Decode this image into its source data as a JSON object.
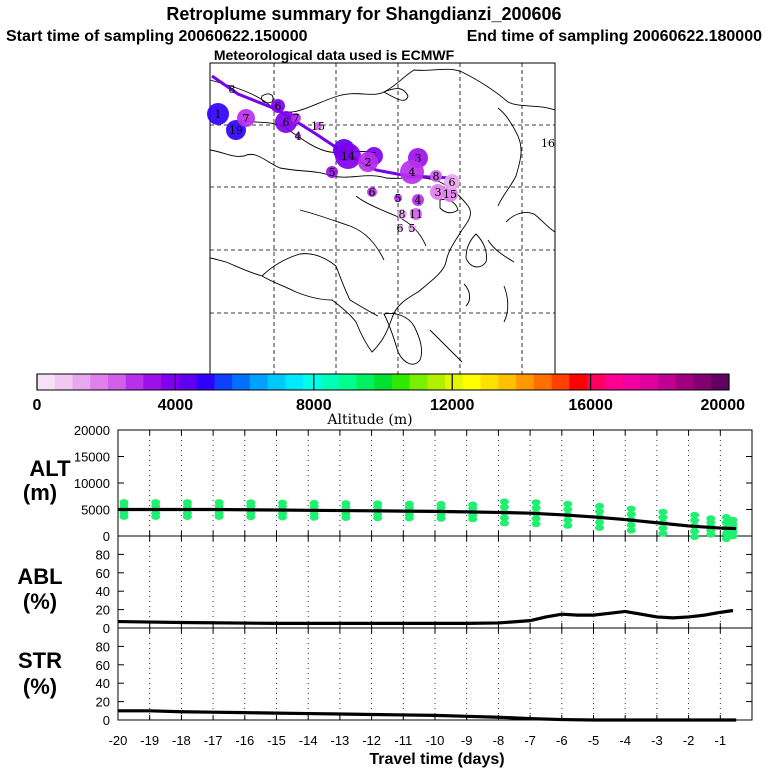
{
  "header": {
    "title": "Retroplume summary for Shangdianzi_200606",
    "start_time": "Start time of sampling 20060622.150000",
    "end_time": "End time of sampling 20060622.180000",
    "met_data": "Meteorological data used is ECMWF"
  },
  "colorbar": {
    "label": "Altitude (m)",
    "range": [
      0,
      20000
    ],
    "ticks": [
      "0",
      "4000",
      "8000",
      "12000",
      "16000",
      "20000"
    ],
    "colors": [
      "#f8e0f8",
      "#f0c8f0",
      "#e8a8ee",
      "#e080ec",
      "#d060ea",
      "#b830ea",
      "#9c10ea",
      "#8000ee",
      "#6000ee",
      "#3000ff",
      "#1040ff",
      "#0070ff",
      "#00a0ff",
      "#00c8ff",
      "#00e8ff",
      "#00ffe8",
      "#00ffb8",
      "#00ff90",
      "#00f060",
      "#00e030",
      "#30e800",
      "#78f000",
      "#b0f000",
      "#e0f800",
      "#ffff00",
      "#ffe000",
      "#ffc000",
      "#ff9800",
      "#ff7000",
      "#ff4000",
      "#ff0000",
      "#ff0060",
      "#ff0090",
      "#f000a0",
      "#e000a0",
      "#c00090",
      "#a00080",
      "#800070",
      "#600060"
    ]
  },
  "map": {
    "trajectory": [
      [
        -20,
        38,
        -8
      ],
      [
        -18,
        34,
        -3
      ],
      [
        -15,
        21,
        -6
      ],
      [
        -12,
        12,
        -3
      ],
      [
        -9,
        7,
        2
      ],
      [
        -6,
        -3,
        2
      ],
      [
        -3,
        -8,
        1
      ],
      [
        -1,
        -12,
        1
      ]
    ],
    "clusters": [
      {
        "label": "1",
        "day": -20,
        "lon": -1,
        "lat": -3,
        "alt": 5000,
        "r": 11
      },
      {
        "label": "19",
        "day": -19,
        "lon": -13,
        "lat": -3,
        "alt": 4800,
        "r": 10
      },
      {
        "label": "7",
        "day": -18,
        "lon": -8,
        "lat": 7,
        "alt": 3000,
        "r": 9
      },
      {
        "label": "6",
        "day": -16,
        "lon": 7,
        "lat": 17,
        "alt": 3800,
        "r": 7
      },
      {
        "label": "6",
        "day": -15,
        "lon": -2,
        "lat": 13,
        "alt": 3600,
        "r": 11
      },
      {
        "label": "7",
        "day": -14,
        "lon": 0,
        "lat": 7,
        "alt": 3000,
        "r": 5
      },
      {
        "label": "4",
        "day": -14,
        "lon": 10,
        "lat": 8,
        "alt": 3000,
        "r": 3
      },
      {
        "label": "15",
        "day": -13,
        "lon": 16,
        "lat": 7,
        "alt": 2500,
        "r": 4
      },
      {
        "label": "8",
        "day": -12,
        "lon": 0,
        "lat": 0,
        "alt": 4200,
        "r": 11
      },
      {
        "label": "14",
        "day": -11,
        "lon": -6,
        "lat": 2,
        "alt": 4000,
        "r": 13
      },
      {
        "label": "5",
        "day": -10,
        "lon": 3,
        "lat": 0,
        "alt": 3600,
        "r": 9
      },
      {
        "label": "2",
        "day": -9,
        "lon": 2,
        "lat": -3,
        "alt": 3000,
        "r": 10
      },
      {
        "label": "5",
        "day": -9,
        "lon": -7,
        "lat": -6,
        "alt": 3200,
        "r": 6
      },
      {
        "label": "3",
        "day": -8,
        "lon": -4,
        "lat": -2,
        "alt": 3400,
        "r": 10
      },
      {
        "label": "4",
        "day": -7,
        "lon": 0,
        "lat": -7,
        "alt": 3000,
        "r": 12
      },
      {
        "label": "6",
        "day": -7,
        "lon": -6,
        "lat": 7,
        "alt": 3000,
        "r": 5
      },
      {
        "label": "5",
        "day": -6,
        "lon": -3,
        "lat": 6,
        "alt": 3000,
        "r": 4
      },
      {
        "label": "8",
        "day": -5,
        "lon": 3,
        "lat": 5,
        "alt": 2500,
        "r": 6
      },
      {
        "label": "3",
        "day": -4,
        "lon": -9,
        "lat": -8,
        "alt": 2000,
        "r": 8
      },
      {
        "label": "15",
        "day": -4,
        "lon": -5,
        "lat": -3,
        "alt": 1800,
        "r": 8
      },
      {
        "label": "4",
        "day": -3,
        "lon": -6,
        "lat": 11,
        "alt": 3000,
        "r": 6
      },
      {
        "label": "11",
        "day": -3,
        "lon": 3,
        "lat": -4,
        "alt": 2500,
        "r": 6
      },
      {
        "label": "8",
        "day": -2,
        "lon": -2,
        "lat": -2,
        "alt": 1500,
        "r": 5
      },
      {
        "label": "5",
        "day": -2,
        "lon": -7,
        "lat": 6,
        "alt": 1500,
        "r": 4
      },
      {
        "label": "6",
        "day": -2,
        "lon": -4,
        "lat": 6,
        "alt": 1200,
        "r": 3
      },
      {
        "label": "6",
        "day": -1,
        "lon": 0,
        "lat": 0,
        "alt": 1200,
        "r": 8
      },
      {
        "label": "16",
        "day": -1,
        "lon": 95,
        "lat": 8,
        "alt": 1000,
        "r": 2
      }
    ]
  },
  "alt_panel": {
    "ylabel": "ALT",
    "yunit": "(m)",
    "yticks": [
      "0",
      "5000",
      "10000",
      "15000",
      "20000"
    ],
    "ylim": [
      0,
      20000
    ],
    "mean_line": [
      [
        -20,
        5000
      ],
      [
        -19,
        5000
      ],
      [
        -18,
        5000
      ],
      [
        -17,
        5000
      ],
      [
        -16,
        4950
      ],
      [
        -15,
        4900
      ],
      [
        -14,
        4850
      ],
      [
        -13,
        4800
      ],
      [
        -12,
        4750
      ],
      [
        -11,
        4700
      ],
      [
        -10,
        4650
      ],
      [
        -9,
        4550
      ],
      [
        -8,
        4450
      ],
      [
        -7,
        4300
      ],
      [
        -6,
        4000
      ],
      [
        -5,
        3600
      ],
      [
        -4,
        3100
      ],
      [
        -3,
        2500
      ],
      [
        -2,
        1900
      ],
      [
        -1,
        1500
      ],
      [
        -0.5,
        1400
      ]
    ]
  },
  "abl_panel": {
    "ylabel": "ABL",
    "yunit": "(%)",
    "yticks": [
      "0",
      "20",
      "40",
      "60",
      "80"
    ],
    "ylim": [
      0,
      100
    ],
    "line": [
      [
        -20,
        7
      ],
      [
        -18,
        6
      ],
      [
        -15,
        5
      ],
      [
        -12,
        5
      ],
      [
        -9,
        5
      ],
      [
        -8,
        5.5
      ],
      [
        -7,
        8
      ],
      [
        -6.5,
        12
      ],
      [
        -6,
        15
      ],
      [
        -5.5,
        14
      ],
      [
        -5,
        14
      ],
      [
        -4.5,
        16
      ],
      [
        -4,
        18
      ],
      [
        -3.5,
        15
      ],
      [
        -3,
        12
      ],
      [
        -2.5,
        11
      ],
      [
        -2,
        12
      ],
      [
        -1.5,
        14
      ],
      [
        -1,
        17
      ],
      [
        -0.6,
        19
      ]
    ]
  },
  "str_panel": {
    "ylabel": "STR",
    "yunit": "(%)",
    "yticks": [
      "0",
      "20",
      "40",
      "60",
      "80"
    ],
    "ylim": [
      0,
      100
    ],
    "line": [
      [
        -20,
        10
      ],
      [
        -19,
        10
      ],
      [
        -18,
        9
      ],
      [
        -17,
        8.5
      ],
      [
        -16,
        8
      ],
      [
        -15,
        7.5
      ],
      [
        -14,
        7
      ],
      [
        -13,
        6.5
      ],
      [
        -12,
        6
      ],
      [
        -11,
        5.5
      ],
      [
        -10,
        5
      ],
      [
        -9,
        4
      ],
      [
        -8,
        3
      ],
      [
        -7,
        1.5
      ],
      [
        -6,
        0.5
      ],
      [
        -5,
        0
      ],
      [
        -0.5,
        0
      ]
    ]
  },
  "xaxis": {
    "xlabel": "Travel time (days)",
    "range": [
      -20,
      0
    ],
    "ticks": [
      "-20",
      "-19",
      "-18",
      "-17",
      "-16",
      "-15",
      "-14",
      "-13",
      "-12",
      "-11",
      "-10",
      "-9",
      "-8",
      "-7",
      "-6",
      "-5",
      "-4",
      "-3",
      "-2",
      "-1"
    ]
  }
}
